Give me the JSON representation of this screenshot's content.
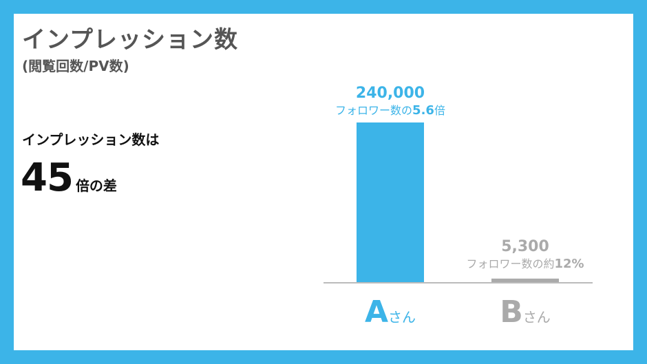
{
  "page": {
    "title": "インプレッション数",
    "subtitle": "(閲覧回数/PV数)",
    "summary_lead": "インプレッション数は",
    "summary_number": "45",
    "summary_suffix": "倍の差"
  },
  "colors": {
    "frame": "#3cb4e8",
    "bar_a": "#3cb4e8",
    "bar_b": "#aaaaaa",
    "text_dark": "#111111",
    "text_title": "#555555",
    "axis": "#bbbbbb"
  },
  "chart_data": {
    "type": "bar",
    "title": "",
    "xlabel": "",
    "ylabel": "",
    "ylim": [
      0,
      240000
    ],
    "grid": false,
    "categories": [
      {
        "letter": "A",
        "suffix": "さん"
      },
      {
        "letter": "B",
        "suffix": "さん"
      }
    ],
    "values": [
      240000,
      5300
    ],
    "value_labels": [
      "240,000",
      "5,300"
    ],
    "annotations": [
      {
        "prefix": "フォロワー数の",
        "emphasis": "5.6倍",
        "emphasis_main": "5.6",
        "emphasis_tail": "倍"
      },
      {
        "prefix": "フォロワー数の約",
        "emphasis": "12%",
        "emphasis_main": "12%",
        "emphasis_tail": ""
      }
    ]
  }
}
